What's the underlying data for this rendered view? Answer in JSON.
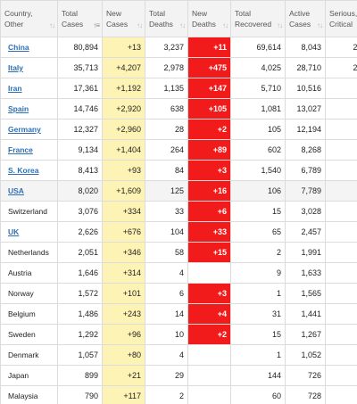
{
  "headers": {
    "country": [
      "Country,",
      "Other"
    ],
    "total_cases": [
      "Total",
      "Cases"
    ],
    "new_cases": [
      "New",
      "Cases"
    ],
    "total_deaths": [
      "Total",
      "Deaths"
    ],
    "new_deaths": [
      "New",
      "Deaths"
    ],
    "total_recovered": [
      "Total",
      "Recovered"
    ],
    "active_cases": [
      "Active",
      "Cases"
    ],
    "serious": [
      "Serious,",
      "Critical"
    ]
  },
  "icons": {
    "sort": "sort-arrows-icon",
    "sort_active": "sort-descending-icon"
  },
  "colors": {
    "new_cases_bg": "#fdf3b4",
    "new_deaths_bg": "#f21b1b",
    "link": "#2f6fb5",
    "highlight_row": "#f4f4f4"
  },
  "rows": [
    {
      "country": "China",
      "link": true,
      "total_cases": "80,894",
      "new_cases": "+13",
      "total_deaths": "3,237",
      "new_deaths": "+11",
      "total_recovered": "69,614",
      "active_cases": "8,043",
      "serious": "2,"
    },
    {
      "country": "Italy",
      "link": true,
      "total_cases": "35,713",
      "new_cases": "+4,207",
      "total_deaths": "2,978",
      "new_deaths": "+475",
      "total_recovered": "4,025",
      "active_cases": "28,710",
      "serious": "2,"
    },
    {
      "country": "Iran",
      "link": true,
      "total_cases": "17,361",
      "new_cases": "+1,192",
      "total_deaths": "1,135",
      "new_deaths": "+147",
      "total_recovered": "5,710",
      "active_cases": "10,516",
      "serious": ""
    },
    {
      "country": "Spain",
      "link": true,
      "total_cases": "14,746",
      "new_cases": "+2,920",
      "total_deaths": "638",
      "new_deaths": "+105",
      "total_recovered": "1,081",
      "active_cases": "13,027",
      "serious": ""
    },
    {
      "country": "Germany",
      "link": true,
      "total_cases": "12,327",
      "new_cases": "+2,960",
      "total_deaths": "28",
      "new_deaths": "+2",
      "total_recovered": "105",
      "active_cases": "12,194",
      "serious": ""
    },
    {
      "country": "France",
      "link": true,
      "total_cases": "9,134",
      "new_cases": "+1,404",
      "total_deaths": "264",
      "new_deaths": "+89",
      "total_recovered": "602",
      "active_cases": "8,268",
      "serious": ""
    },
    {
      "country": "S. Korea",
      "link": true,
      "total_cases": "8,413",
      "new_cases": "+93",
      "total_deaths": "84",
      "new_deaths": "+3",
      "total_recovered": "1,540",
      "active_cases": "6,789",
      "serious": ""
    },
    {
      "country": "USA",
      "link": true,
      "highlight": true,
      "total_cases": "8,020",
      "new_cases": "+1,609",
      "total_deaths": "125",
      "new_deaths": "+16",
      "total_recovered": "106",
      "active_cases": "7,789",
      "serious": ""
    },
    {
      "country": "Switzerland",
      "link": false,
      "total_cases": "3,076",
      "new_cases": "+334",
      "total_deaths": "33",
      "new_deaths": "+6",
      "total_recovered": "15",
      "active_cases": "3,028",
      "serious": ""
    },
    {
      "country": "UK",
      "link": true,
      "total_cases": "2,626",
      "new_cases": "+676",
      "total_deaths": "104",
      "new_deaths": "+33",
      "total_recovered": "65",
      "active_cases": "2,457",
      "serious": ""
    },
    {
      "country": "Netherlands",
      "link": false,
      "total_cases": "2,051",
      "new_cases": "+346",
      "total_deaths": "58",
      "new_deaths": "+15",
      "total_recovered": "2",
      "active_cases": "1,991",
      "serious": ""
    },
    {
      "country": "Austria",
      "link": false,
      "total_cases": "1,646",
      "new_cases": "+314",
      "total_deaths": "4",
      "new_deaths": "",
      "total_recovered": "9",
      "active_cases": "1,633",
      "serious": ""
    },
    {
      "country": "Norway",
      "link": false,
      "total_cases": "1,572",
      "new_cases": "+101",
      "total_deaths": "6",
      "new_deaths": "+3",
      "total_recovered": "1",
      "active_cases": "1,565",
      "serious": ""
    },
    {
      "country": "Belgium",
      "link": false,
      "total_cases": "1,486",
      "new_cases": "+243",
      "total_deaths": "14",
      "new_deaths": "+4",
      "total_recovered": "31",
      "active_cases": "1,441",
      "serious": ""
    },
    {
      "country": "Sweden",
      "link": false,
      "total_cases": "1,292",
      "new_cases": "+96",
      "total_deaths": "10",
      "new_deaths": "+2",
      "total_recovered": "15",
      "active_cases": "1,267",
      "serious": ""
    },
    {
      "country": "Denmark",
      "link": false,
      "total_cases": "1,057",
      "new_cases": "+80",
      "total_deaths": "4",
      "new_deaths": "",
      "total_recovered": "1",
      "active_cases": "1,052",
      "serious": ""
    },
    {
      "country": "Japan",
      "link": false,
      "total_cases": "899",
      "new_cases": "+21",
      "total_deaths": "29",
      "new_deaths": "",
      "total_recovered": "144",
      "active_cases": "726",
      "serious": ""
    },
    {
      "country": "Malaysia",
      "link": false,
      "total_cases": "790",
      "new_cases": "+117",
      "total_deaths": "2",
      "new_deaths": "",
      "total_recovered": "60",
      "active_cases": "728",
      "serious": ""
    }
  ]
}
